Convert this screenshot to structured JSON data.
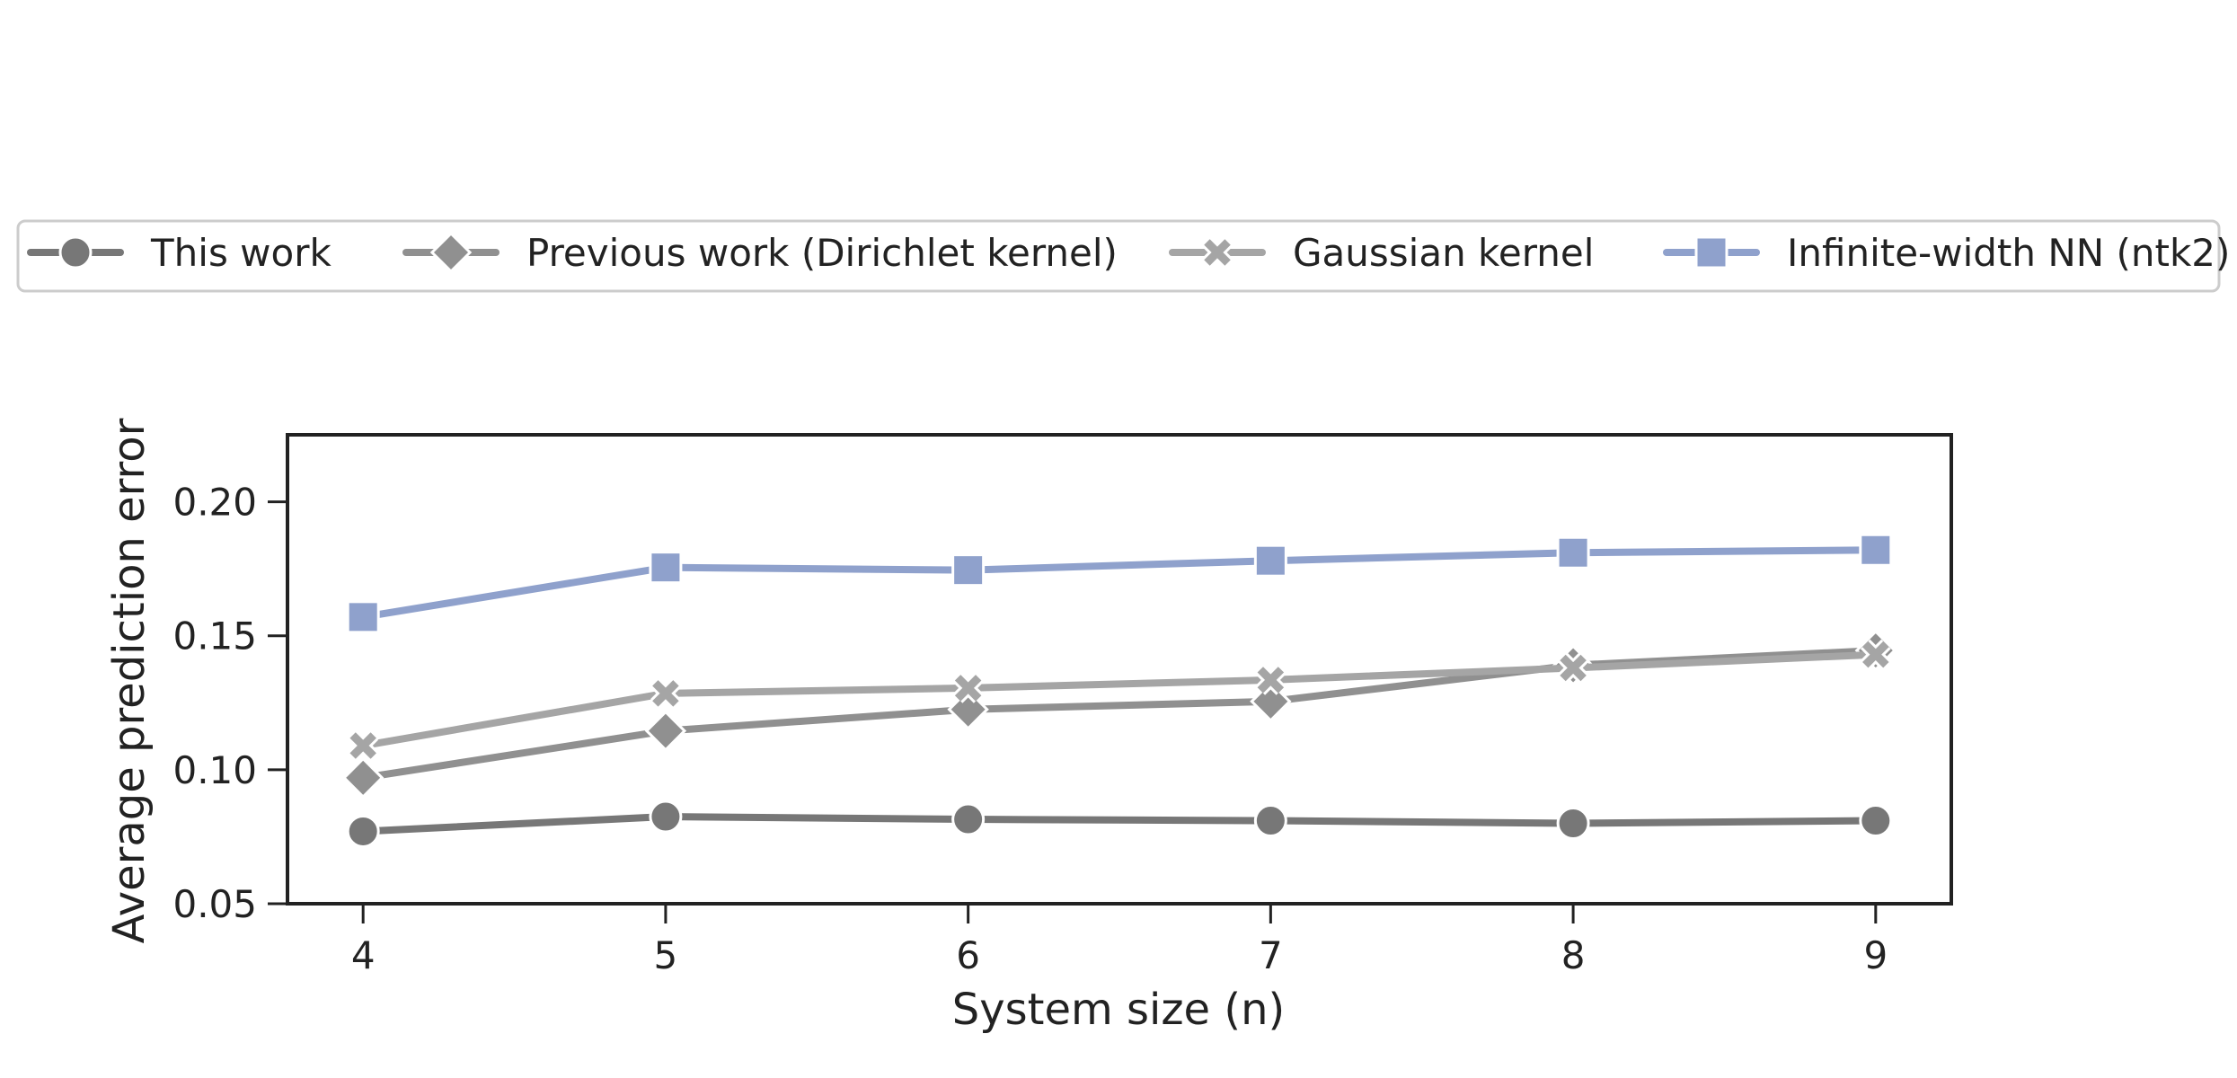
{
  "chart_data": {
    "type": "line",
    "xlabel": "System size (n)",
    "ylabel": "Average prediction error",
    "x": [
      4,
      5,
      6,
      7,
      8,
      9
    ],
    "xlim": [
      3.75,
      9.25
    ],
    "ylim": [
      0.05,
      0.225
    ],
    "xticks": [
      "4",
      "5",
      "6",
      "7",
      "8",
      "9"
    ],
    "yticks": [
      "0.05",
      "0.10",
      "0.15",
      "0.20"
    ],
    "grid": false,
    "legend_position": "top",
    "series": [
      {
        "name": "This work",
        "color": "#777777",
        "marker": "circle",
        "values": [
          0.077,
          0.0825,
          0.0815,
          0.081,
          0.08,
          0.081
        ]
      },
      {
        "name": "Previous work (Dirichlet kernel)",
        "color": "#909090",
        "marker": "diamond",
        "values": [
          0.097,
          0.1145,
          0.1225,
          0.1255,
          0.139,
          0.1445
        ]
      },
      {
        "name": "Gaussian kernel",
        "color": "#a5a5a5",
        "marker": "x",
        "values": [
          0.109,
          0.1285,
          0.1305,
          0.1335,
          0.138,
          0.143
        ]
      },
      {
        "name": "Infinite-width NN (ntk2)",
        "color": "#8fa1cc",
        "marker": "square",
        "values": [
          0.157,
          0.1755,
          0.1745,
          0.178,
          0.181,
          0.182
        ]
      }
    ]
  }
}
